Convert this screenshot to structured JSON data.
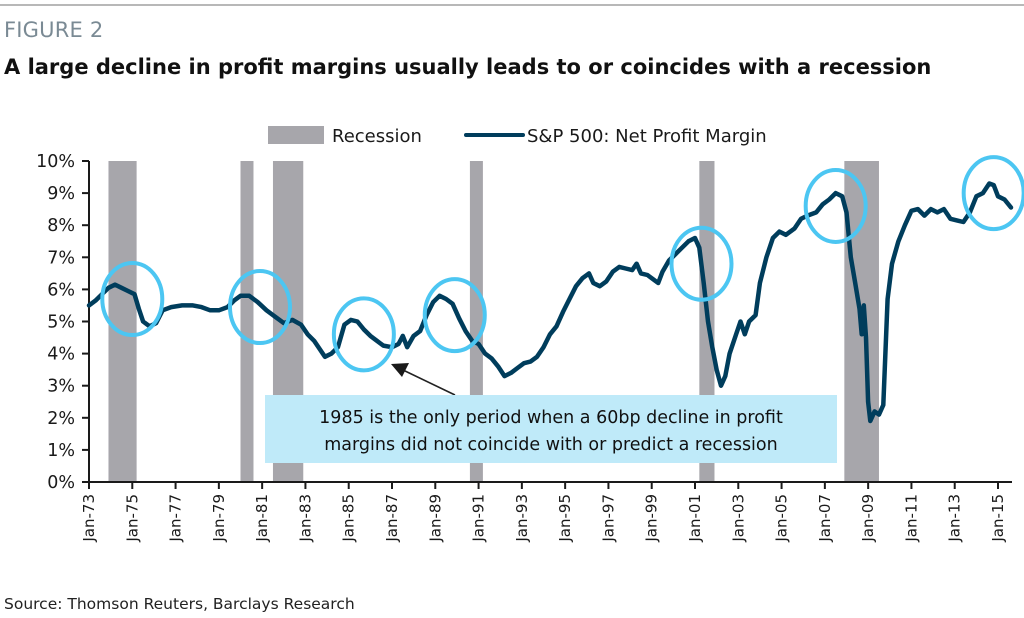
{
  "figure": {
    "label": "FIGURE 2",
    "title": "A large decline in profit margins usually leads to or coincides with a recession",
    "source": "Source: Thomson Reuters, Barclays Research"
  },
  "colors": {
    "line": "#003d5c",
    "recession": "#a7a6ab",
    "circle": "#4cc6f2",
    "note_bg": "#bfeaf9",
    "axis": "#1a1a1a"
  },
  "chart_data": {
    "type": "line",
    "title": "A large decline in profit margins usually leads to or coincides with a recession",
    "xlabel": "",
    "ylabel": "",
    "ylim": [
      0,
      10
    ],
    "xlim": [
      1973.0,
      1973.0
    ],
    "x_range_years": [
      1973.0,
      2015.6
    ],
    "y_ticks": [
      "0%",
      "1%",
      "2%",
      "3%",
      "4%",
      "5%",
      "6%",
      "7%",
      "8%",
      "9%",
      "10%"
    ],
    "x_ticks": [
      "Jan-73",
      "Jan-75",
      "Jan-77",
      "Jan-79",
      "Jan-81",
      "Jan-83",
      "Jan-85",
      "Jan-87",
      "Jan-89",
      "Jan-91",
      "Jan-93",
      "Jan-95",
      "Jan-97",
      "Jan-99",
      "Jan-01",
      "Jan-03",
      "Jan-05",
      "Jan-07",
      "Jan-09",
      "Jan-11",
      "Jan-13",
      "Jan-15"
    ],
    "grid": false,
    "legend": {
      "placement": "top-center",
      "entries": [
        {
          "label": "Recession",
          "kind": "band"
        },
        {
          "label": "S&P 500: Net Profit Margin",
          "kind": "line"
        }
      ]
    },
    "recessions": [
      {
        "start": 1973.9,
        "end": 1975.2
      },
      {
        "start": 1980.0,
        "end": 1980.6
      },
      {
        "start": 1981.5,
        "end": 1982.9
      },
      {
        "start": 1990.6,
        "end": 1991.2
      },
      {
        "start": 2001.2,
        "end": 2001.9
      },
      {
        "start": 2007.9,
        "end": 2009.5
      }
    ],
    "series": [
      {
        "name": "S&P 500: Net Profit Margin",
        "unit": "%",
        "points": [
          [
            1973.0,
            5.5
          ],
          [
            1973.3,
            5.65
          ],
          [
            1973.6,
            5.85
          ],
          [
            1973.9,
            6.05
          ],
          [
            1974.2,
            6.15
          ],
          [
            1974.5,
            6.05
          ],
          [
            1974.8,
            5.95
          ],
          [
            1975.1,
            5.85
          ],
          [
            1975.3,
            5.4
          ],
          [
            1975.5,
            5.0
          ],
          [
            1975.8,
            4.85
          ],
          [
            1976.1,
            4.95
          ],
          [
            1976.4,
            5.35
          ],
          [
            1976.8,
            5.45
          ],
          [
            1977.3,
            5.5
          ],
          [
            1977.8,
            5.5
          ],
          [
            1978.2,
            5.45
          ],
          [
            1978.6,
            5.35
          ],
          [
            1979.0,
            5.35
          ],
          [
            1979.4,
            5.45
          ],
          [
            1979.7,
            5.65
          ],
          [
            1980.0,
            5.8
          ],
          [
            1980.4,
            5.8
          ],
          [
            1980.8,
            5.6
          ],
          [
            1981.2,
            5.35
          ],
          [
            1981.6,
            5.15
          ],
          [
            1982.0,
            4.95
          ],
          [
            1982.4,
            5.05
          ],
          [
            1982.8,
            4.9
          ],
          [
            1983.1,
            4.6
          ],
          [
            1983.4,
            4.4
          ],
          [
            1983.7,
            4.1
          ],
          [
            1983.9,
            3.9
          ],
          [
            1984.2,
            4.0
          ],
          [
            1984.5,
            4.2
          ],
          [
            1984.8,
            4.9
          ],
          [
            1985.1,
            5.05
          ],
          [
            1985.4,
            5.0
          ],
          [
            1985.7,
            4.75
          ],
          [
            1986.0,
            4.55
          ],
          [
            1986.3,
            4.4
          ],
          [
            1986.6,
            4.25
          ],
          [
            1987.0,
            4.2
          ],
          [
            1987.3,
            4.3
          ],
          [
            1987.5,
            4.55
          ],
          [
            1987.7,
            4.2
          ],
          [
            1988.0,
            4.55
          ],
          [
            1988.3,
            4.7
          ],
          [
            1988.6,
            5.2
          ],
          [
            1988.9,
            5.6
          ],
          [
            1989.2,
            5.8
          ],
          [
            1989.5,
            5.7
          ],
          [
            1989.8,
            5.55
          ],
          [
            1990.1,
            5.1
          ],
          [
            1990.4,
            4.7
          ],
          [
            1990.7,
            4.4
          ],
          [
            1991.0,
            4.3
          ],
          [
            1991.3,
            4.0
          ],
          [
            1991.6,
            3.85
          ],
          [
            1991.9,
            3.6
          ],
          [
            1992.2,
            3.3
          ],
          [
            1992.5,
            3.4
          ],
          [
            1992.8,
            3.55
          ],
          [
            1993.1,
            3.7
          ],
          [
            1993.4,
            3.75
          ],
          [
            1993.7,
            3.9
          ],
          [
            1994.0,
            4.2
          ],
          [
            1994.3,
            4.6
          ],
          [
            1994.6,
            4.85
          ],
          [
            1994.9,
            5.3
          ],
          [
            1995.2,
            5.7
          ],
          [
            1995.5,
            6.1
          ],
          [
            1995.8,
            6.35
          ],
          [
            1996.1,
            6.5
          ],
          [
            1996.3,
            6.2
          ],
          [
            1996.6,
            6.1
          ],
          [
            1996.9,
            6.25
          ],
          [
            1997.2,
            6.55
          ],
          [
            1997.5,
            6.7
          ],
          [
            1997.8,
            6.65
          ],
          [
            1998.1,
            6.6
          ],
          [
            1998.3,
            6.8
          ],
          [
            1998.5,
            6.5
          ],
          [
            1998.8,
            6.45
          ],
          [
            1999.1,
            6.3
          ],
          [
            1999.3,
            6.2
          ],
          [
            1999.5,
            6.55
          ],
          [
            1999.8,
            6.9
          ],
          [
            2000.1,
            7.1
          ],
          [
            2000.4,
            7.3
          ],
          [
            2000.7,
            7.5
          ],
          [
            2001.0,
            7.6
          ],
          [
            2001.2,
            7.3
          ],
          [
            2001.4,
            6.2
          ],
          [
            2001.6,
            5.0
          ],
          [
            2001.8,
            4.2
          ],
          [
            2002.0,
            3.5
          ],
          [
            2002.2,
            3.0
          ],
          [
            2002.4,
            3.3
          ],
          [
            2002.6,
            4.0
          ],
          [
            2002.9,
            4.6
          ],
          [
            2003.1,
            5.0
          ],
          [
            2003.3,
            4.6
          ],
          [
            2003.5,
            5.0
          ],
          [
            2003.8,
            5.2
          ],
          [
            2004.0,
            6.2
          ],
          [
            2004.3,
            7.0
          ],
          [
            2004.6,
            7.6
          ],
          [
            2004.9,
            7.8
          ],
          [
            2005.2,
            7.7
          ],
          [
            2005.6,
            7.9
          ],
          [
            2005.9,
            8.2
          ],
          [
            2006.2,
            8.3
          ],
          [
            2006.6,
            8.4
          ],
          [
            2006.9,
            8.65
          ],
          [
            2007.2,
            8.8
          ],
          [
            2007.5,
            9.0
          ],
          [
            2007.8,
            8.9
          ],
          [
            2008.0,
            8.4
          ],
          [
            2008.2,
            7.0
          ],
          [
            2008.4,
            6.2
          ],
          [
            2008.6,
            5.4
          ],
          [
            2008.7,
            4.6
          ],
          [
            2008.8,
            5.5
          ],
          [
            2008.9,
            4.5
          ],
          [
            2009.0,
            2.5
          ],
          [
            2009.1,
            1.9
          ],
          [
            2009.3,
            2.2
          ],
          [
            2009.5,
            2.1
          ],
          [
            2009.7,
            2.4
          ],
          [
            2009.9,
            5.7
          ],
          [
            2010.1,
            6.8
          ],
          [
            2010.4,
            7.5
          ],
          [
            2010.7,
            8.0
          ],
          [
            2011.0,
            8.45
          ],
          [
            2011.3,
            8.5
          ],
          [
            2011.6,
            8.3
          ],
          [
            2011.9,
            8.5
          ],
          [
            2012.2,
            8.4
          ],
          [
            2012.5,
            8.5
          ],
          [
            2012.8,
            8.2
          ],
          [
            2013.1,
            8.15
          ],
          [
            2013.4,
            8.1
          ],
          [
            2013.7,
            8.4
          ],
          [
            2014.0,
            8.9
          ],
          [
            2014.3,
            9.0
          ],
          [
            2014.6,
            9.3
          ],
          [
            2014.8,
            9.25
          ],
          [
            2015.0,
            8.9
          ],
          [
            2015.3,
            8.8
          ],
          [
            2015.6,
            8.55
          ]
        ]
      }
    ],
    "highlight_circles": [
      {
        "year": 1975.0,
        "value": 5.7
      },
      {
        "year": 1980.9,
        "value": 5.45
      },
      {
        "year": 1985.7,
        "value": 4.6
      },
      {
        "year": 1989.9,
        "value": 5.2
      },
      {
        "year": 2001.3,
        "value": 6.8
      },
      {
        "year": 2007.5,
        "value": 8.6
      },
      {
        "year": 2014.8,
        "value": 9.0
      }
    ],
    "annotation": {
      "lines": [
        "1985 is the only period when  a 60bp decline in profit",
        "margins did not coincide with or predict a recession"
      ],
      "points_to_year": 1986.5,
      "points_to_value": 3.6
    }
  }
}
